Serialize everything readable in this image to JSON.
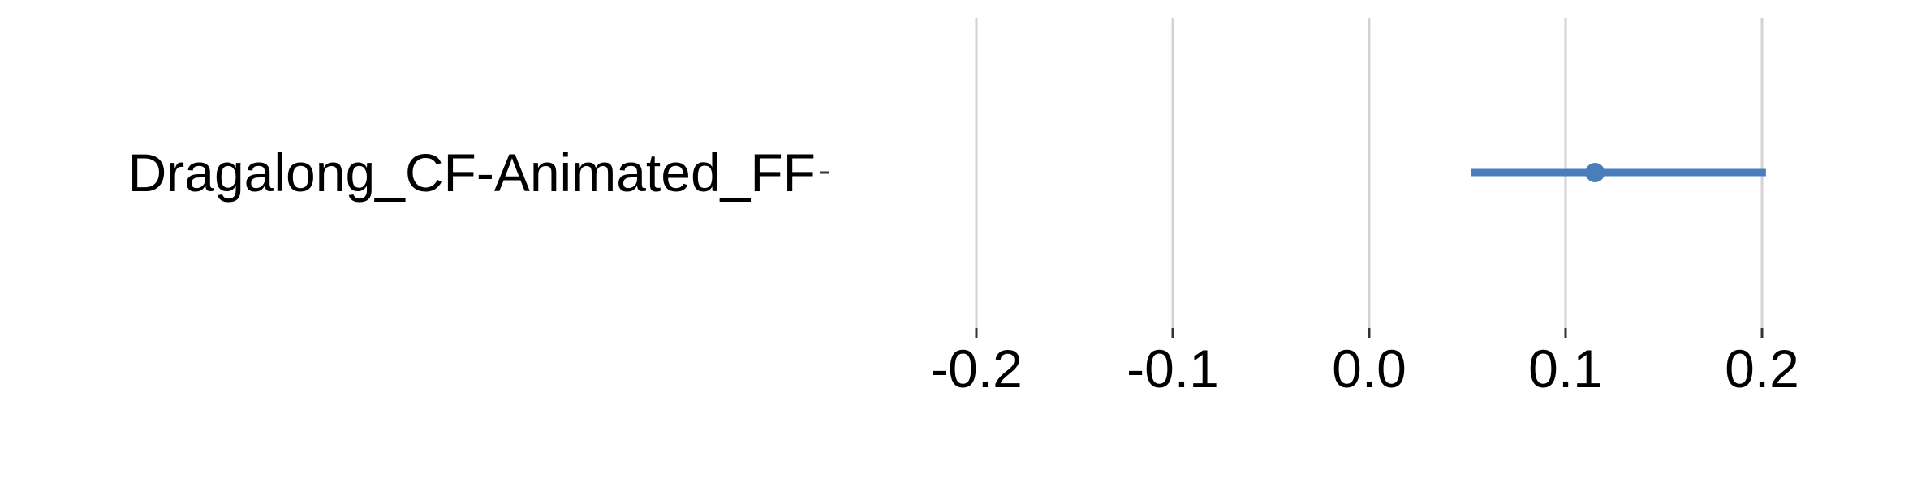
{
  "chart_data": {
    "type": "forest",
    "categories": [
      "Dragalong_CF-Animated_FF"
    ],
    "series": [
      {
        "estimates": [
          0.115
        ],
        "ci_low": [
          0.052
        ],
        "ci_high": [
          0.202
        ]
      }
    ],
    "xlim": [
      -0.2,
      0.2
    ],
    "x_ticks": [
      -0.2,
      -0.1,
      0.0,
      0.1,
      0.2
    ],
    "x_tick_labels": [
      "-0.2",
      "-0.1",
      "0.0",
      "0.1",
      "0.2"
    ],
    "title": "",
    "xlabel": "",
    "ylabel": "",
    "grid": "vertical",
    "colors": {
      "series": "#4a7ebb",
      "grid": "#d3d3d3",
      "ticks": "#333333",
      "text": "#000000"
    }
  }
}
